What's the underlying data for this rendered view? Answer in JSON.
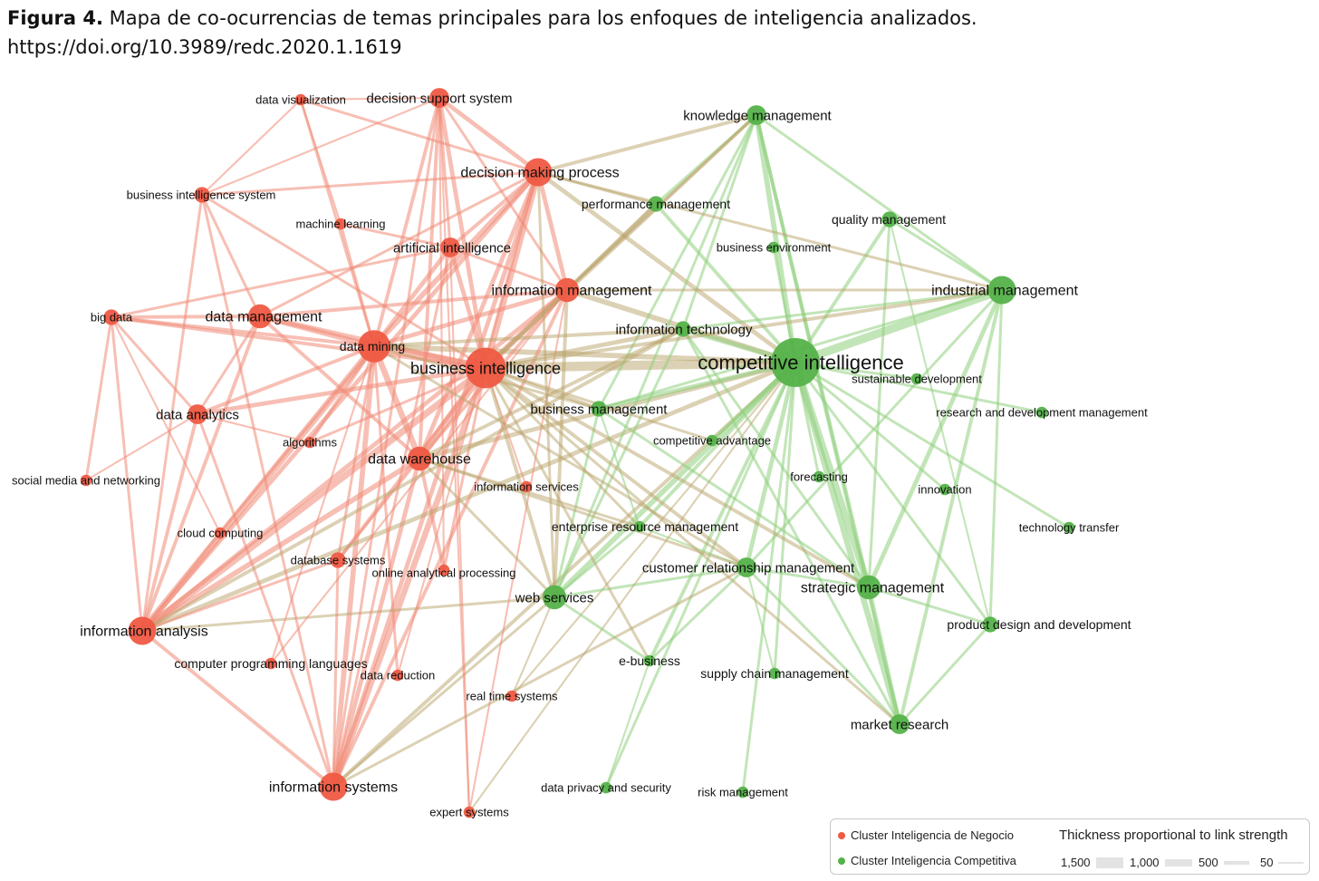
{
  "caption": {
    "label": "Figura 4.",
    "text": "Mapa de co-ocurrencias de temas principales para los enfoques de inteligencia analizados.",
    "doi": "https://doi.org/10.3989/redc.2020.1.1619"
  },
  "colors": {
    "red_cluster": "#ef5a43",
    "green_cluster": "#55b24a",
    "red_edge": "#f08a76",
    "green_edge": "#8fd07e",
    "mixed_edge": "#b9a46a"
  },
  "legend": {
    "red_cluster_label": "Cluster Inteligencia de Negocio",
    "green_cluster_label": "Cluster Inteligencia Competitiva",
    "thickness_title": "Thickness proportional to link strength",
    "thickness_values": [
      "1,500",
      "1,000",
      "500",
      "50"
    ]
  },
  "nodes": [
    {
      "id": "data_visualization",
      "label": "data visualization",
      "cluster": "red",
      "weight": 1
    },
    {
      "id": "decision_support_system",
      "label": "decision support system",
      "cluster": "red",
      "weight": 3
    },
    {
      "id": "decision_making_process",
      "label": "decision making process",
      "cluster": "red",
      "weight": 5
    },
    {
      "id": "business_intelligence_system",
      "label": "business intelligence system",
      "cluster": "red",
      "weight": 2
    },
    {
      "id": "machine_learning",
      "label": "machine learning",
      "cluster": "red",
      "weight": 1
    },
    {
      "id": "artificial_intelligence",
      "label": "artificial intelligence",
      "cluster": "red",
      "weight": 3
    },
    {
      "id": "information_management",
      "label": "information management",
      "cluster": "red",
      "weight": 4
    },
    {
      "id": "big_data",
      "label": "big data",
      "cluster": "red",
      "weight": 2
    },
    {
      "id": "data_management",
      "label": "data management",
      "cluster": "red",
      "weight": 4
    },
    {
      "id": "data_mining",
      "label": "data mining",
      "cluster": "red",
      "weight": 6
    },
    {
      "id": "business_intelligence",
      "label": "business intelligence",
      "cluster": "red",
      "weight": 8
    },
    {
      "id": "data_analytics",
      "label": "data analytics",
      "cluster": "red",
      "weight": 3
    },
    {
      "id": "algorithms",
      "label": "algorithms",
      "cluster": "red",
      "weight": 1
    },
    {
      "id": "data_warehouse",
      "label": "data warehouse",
      "cluster": "red",
      "weight": 4
    },
    {
      "id": "social_media",
      "label": "social media and networking",
      "cluster": "red",
      "weight": 1
    },
    {
      "id": "information_services",
      "label": "information services",
      "cluster": "red",
      "weight": 1
    },
    {
      "id": "cloud_computing",
      "label": "cloud computing",
      "cluster": "red",
      "weight": 1
    },
    {
      "id": "database_systems",
      "label": "database systems",
      "cluster": "red",
      "weight": 2
    },
    {
      "id": "olap",
      "label": "online analytical processing",
      "cluster": "red",
      "weight": 1
    },
    {
      "id": "information_analysis",
      "label": "information analysis",
      "cluster": "red",
      "weight": 5
    },
    {
      "id": "computer_programming",
      "label": "computer programming languages",
      "cluster": "red",
      "weight": 1
    },
    {
      "id": "data_reduction",
      "label": "data reduction",
      "cluster": "red",
      "weight": 1
    },
    {
      "id": "real_time_systems",
      "label": "real time systems",
      "cluster": "red",
      "weight": 1
    },
    {
      "id": "information_systems",
      "label": "information systems",
      "cluster": "red",
      "weight": 5
    },
    {
      "id": "expert_systems",
      "label": "expert systems",
      "cluster": "red",
      "weight": 1
    },
    {
      "id": "knowledge_management",
      "label": "knowledge management",
      "cluster": "green",
      "weight": 3
    },
    {
      "id": "performance_management",
      "label": "performance management",
      "cluster": "green",
      "weight": 2
    },
    {
      "id": "quality_management",
      "label": "quality management",
      "cluster": "green",
      "weight": 2
    },
    {
      "id": "business_environment",
      "label": "business environment",
      "cluster": "green",
      "weight": 1
    },
    {
      "id": "industrial_management",
      "label": "industrial management",
      "cluster": "green",
      "weight": 5
    },
    {
      "id": "information_technology",
      "label": "information technology",
      "cluster": "green",
      "weight": 2
    },
    {
      "id": "competitive_intelligence",
      "label": "competitive intelligence",
      "cluster": "green",
      "weight": 10
    },
    {
      "id": "sustainable_development",
      "label": "sustainable development",
      "cluster": "green",
      "weight": 1
    },
    {
      "id": "rd_management",
      "label": "research and development management",
      "cluster": "green",
      "weight": 1
    },
    {
      "id": "business_management",
      "label": "business management",
      "cluster": "green",
      "weight": 2
    },
    {
      "id": "competitive_advantage",
      "label": "competitive advantage",
      "cluster": "green",
      "weight": 1
    },
    {
      "id": "forecasting",
      "label": "forecasting",
      "cluster": "green",
      "weight": 1
    },
    {
      "id": "innovation",
      "label": "innovation",
      "cluster": "green",
      "weight": 1
    },
    {
      "id": "technology_transfer",
      "label": "technology transfer",
      "cluster": "green",
      "weight": 1
    },
    {
      "id": "erm",
      "label": "enterprise resource management",
      "cluster": "green",
      "weight": 1
    },
    {
      "id": "crm",
      "label": "customer relationship management",
      "cluster": "green",
      "weight": 3
    },
    {
      "id": "strategic_management",
      "label": "strategic management",
      "cluster": "green",
      "weight": 4
    },
    {
      "id": "web_services",
      "label": "web services",
      "cluster": "green",
      "weight": 4
    },
    {
      "id": "product_design",
      "label": "product design and development",
      "cluster": "green",
      "weight": 2
    },
    {
      "id": "e_business",
      "label": "e-business",
      "cluster": "green",
      "weight": 1
    },
    {
      "id": "supply_chain",
      "label": "supply chain management",
      "cluster": "green",
      "weight": 1
    },
    {
      "id": "market_research",
      "label": "market research",
      "cluster": "green",
      "weight": 3
    },
    {
      "id": "data_privacy",
      "label": "data privacy and security",
      "cluster": "green",
      "weight": 1
    },
    {
      "id": "risk_management",
      "label": "risk management",
      "cluster": "green",
      "weight": 1
    }
  ]
}
